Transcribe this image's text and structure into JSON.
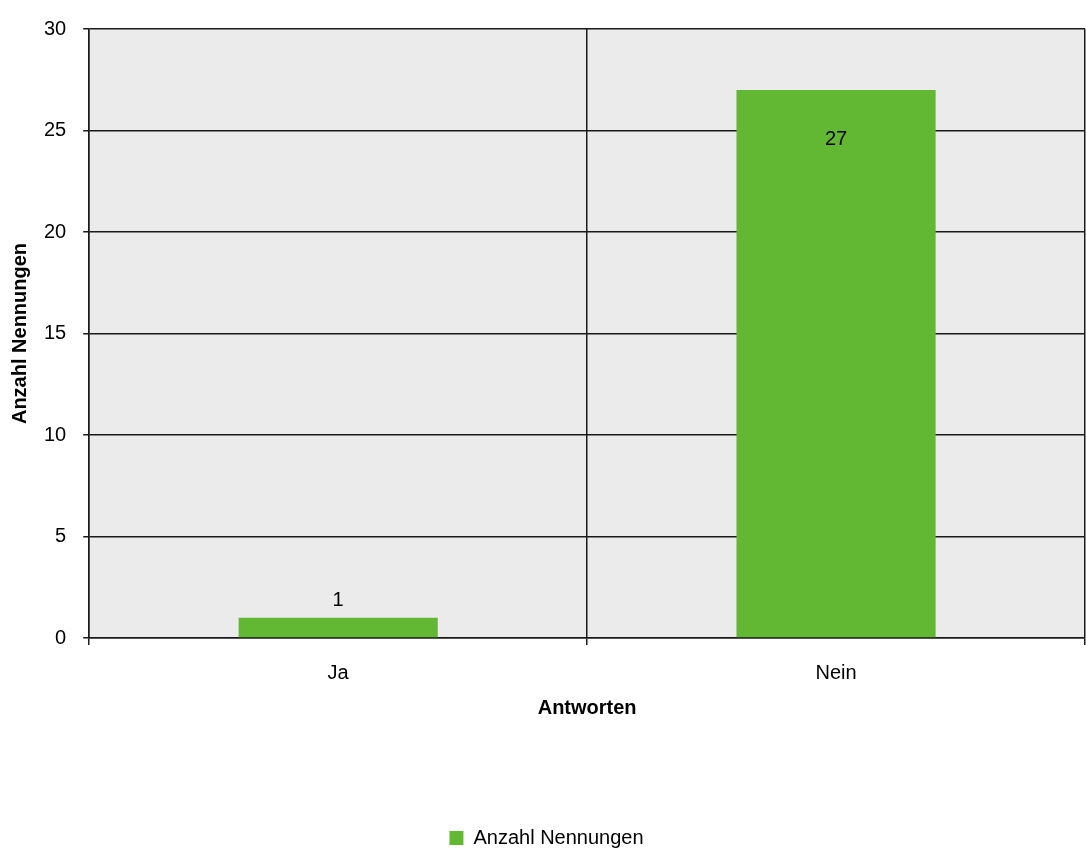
{
  "chart_data": {
    "type": "bar",
    "categories": [
      "Ja",
      "Nein"
    ],
    "series": [
      {
        "name": "Anzahl Nennungen",
        "color": "#62b832",
        "values": [
          1,
          27
        ]
      }
    ],
    "xlabel": "Antworten",
    "ylabel": "Anzahl Nennungen",
    "ylim": [
      0,
      30
    ],
    "yticks": [
      0,
      5,
      10,
      15,
      20,
      25,
      30
    ],
    "grid": true,
    "legend": "bottom",
    "data_labels": true
  }
}
